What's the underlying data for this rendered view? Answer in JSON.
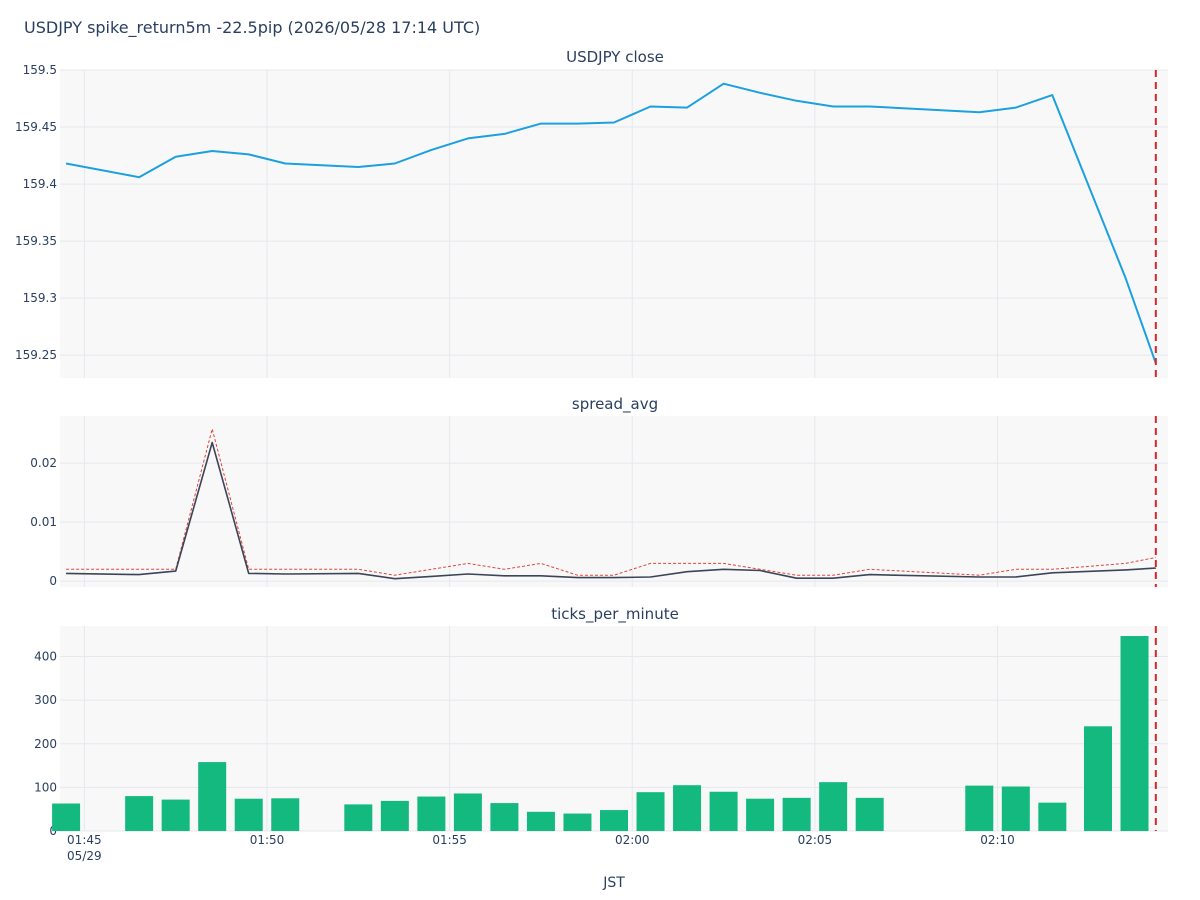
{
  "figure_title": "USDJPY spike_return5m -22.5pip (2026/05/28 17:14 UTC)",
  "x_axis": {
    "label": "JST",
    "ticks": [
      {
        "t": "01:45",
        "label": "01:45",
        "sublabel": "05/29"
      },
      {
        "t": "01:50",
        "label": "01:50",
        "sublabel": ""
      },
      {
        "t": "01:55",
        "label": "01:55",
        "sublabel": ""
      },
      {
        "t": "02:00",
        "label": "02:00",
        "sublabel": ""
      },
      {
        "t": "02:05",
        "label": "02:05",
        "sublabel": ""
      },
      {
        "t": "02:10",
        "label": "02:10",
        "sublabel": ""
      }
    ],
    "range": [
      "01:44:20",
      "02:14:40"
    ]
  },
  "event_time": "02:14:20",
  "colors": {
    "close_line": "#1ca0e0",
    "spread_line": "#3c4458",
    "spread_ref": "#e0453a",
    "bars": "#13b97f",
    "event_line": "#d62728",
    "plot_bg": "#f8f8f9",
    "grid": "#e6e8ee"
  },
  "chart_data": [
    {
      "type": "line",
      "title": "USDJPY close",
      "ylim": [
        159.23,
        159.5
      ],
      "yticks": [
        159.25,
        159.3,
        159.35,
        159.4,
        159.45,
        159.5
      ],
      "ytick_labels": [
        "159.25",
        "159.3",
        "159.35",
        "159.4",
        "159.45",
        "159.5"
      ],
      "x": [
        "01:44:30",
        "01:46:30",
        "01:47:30",
        "01:48:30",
        "01:49:30",
        "01:50:30",
        "01:52:30",
        "01:53:30",
        "01:54:30",
        "01:55:30",
        "01:56:30",
        "01:57:30",
        "01:58:30",
        "01:59:30",
        "02:00:30",
        "02:01:30",
        "02:02:30",
        "02:03:30",
        "02:04:30",
        "02:05:30",
        "02:06:30",
        "02:09:30",
        "02:10:30",
        "02:11:30",
        "02:13:30",
        "02:14:20"
      ],
      "series": [
        {
          "values": [
            159.418,
            159.406,
            159.424,
            159.429,
            159.426,
            159.418,
            159.415,
            159.418,
            159.43,
            159.44,
            159.444,
            159.453,
            159.453,
            159.454,
            159.468,
            159.467,
            159.488,
            159.48,
            159.473,
            159.468,
            159.468,
            159.463,
            159.467,
            159.478,
            159.318,
            159.243
          ]
        }
      ]
    },
    {
      "type": "line",
      "title": "spread_avg",
      "ylim": [
        -0.001,
        0.028
      ],
      "yticks": [
        0,
        0.01,
        0.02
      ],
      "ytick_labels": [
        "0",
        "0.01",
        "0.02"
      ],
      "x": [
        "01:44:30",
        "01:46:30",
        "01:47:30",
        "01:48:30",
        "01:49:30",
        "01:50:30",
        "01:52:30",
        "01:53:30",
        "01:54:30",
        "01:55:30",
        "01:56:30",
        "01:57:30",
        "01:58:30",
        "01:59:30",
        "02:00:30",
        "02:01:30",
        "02:02:30",
        "02:03:30",
        "02:04:30",
        "02:05:30",
        "02:06:30",
        "02:09:30",
        "02:10:30",
        "02:11:30",
        "02:13:30",
        "02:14:20"
      ],
      "series": [
        {
          "values": [
            0.0013,
            0.0011,
            0.0017,
            0.0235,
            0.0013,
            0.0012,
            0.0013,
            0.0004,
            0.0008,
            0.0012,
            0.0009,
            0.0009,
            0.0006,
            0.0006,
            0.0007,
            0.0016,
            0.002,
            0.0018,
            0.0005,
            0.0005,
            0.0011,
            0.0007,
            0.0007,
            0.0014,
            0.0019,
            0.0022
          ]
        },
        {
          "values": [
            0.002,
            0.002,
            0.002,
            0.0258,
            0.002,
            0.002,
            0.002,
            0.001,
            0.002,
            0.003,
            0.002,
            0.003,
            0.001,
            0.001,
            0.003,
            0.003,
            0.003,
            0.002,
            0.001,
            0.001,
            0.002,
            0.001,
            0.002,
            0.002,
            0.003,
            0.004
          ]
        }
      ]
    },
    {
      "type": "bar",
      "title": "ticks_per_minute",
      "ylim": [
        0,
        470
      ],
      "yticks": [
        0,
        100,
        200,
        300,
        400
      ],
      "ytick_labels": [
        "0",
        "100",
        "200",
        "300",
        "400"
      ],
      "x": [
        "01:44:30",
        "01:46:30",
        "01:47:30",
        "01:48:30",
        "01:49:30",
        "01:50:30",
        "01:52:30",
        "01:53:30",
        "01:54:30",
        "01:55:30",
        "01:56:30",
        "01:57:30",
        "01:58:30",
        "01:59:30",
        "02:00:30",
        "02:01:30",
        "02:02:30",
        "02:03:30",
        "02:04:30",
        "02:05:30",
        "02:06:30",
        "02:09:30",
        "02:10:30",
        "02:11:30",
        "02:12:45",
        "02:13:45"
      ],
      "values": [
        63,
        80,
        72,
        158,
        74,
        75,
        61,
        69,
        79,
        86,
        64,
        44,
        40,
        48,
        89,
        105,
        90,
        74,
        76,
        112,
        76,
        104,
        102,
        65,
        240,
        447
      ]
    }
  ]
}
